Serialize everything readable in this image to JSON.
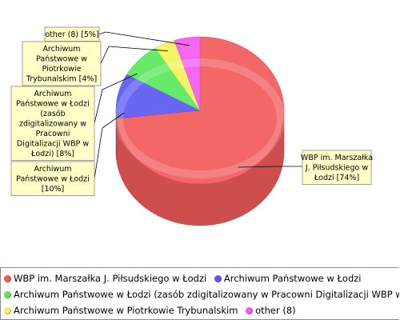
{
  "chart_data": {
    "type": "pie",
    "style": "3d",
    "slices": [
      {
        "name": "WBP im. Marszałka J. Piłsudskiego w Łodzi",
        "percent": 74,
        "label": "WBP im. Marszałka J. Piłsudskiego w Łodzi [74%]",
        "color": "#f25a5a"
      },
      {
        "name": "Archiwum Państwowe w Łodzi",
        "percent": 10,
        "label": "Archiwum Państwowe w Łodzi [10%]",
        "color": "#5a5af2"
      },
      {
        "name": "Archiwum Państwowe w Łodzi (zasób zdigitalizowany w Pracowni Digitalizacji WBP w Łodzi)",
        "percent": 8,
        "label": "Archiwum Państwowe w Łodzi (zasób zdigitalizowany w Pracowni Digitalizacji WBP w Łodzi) [8%]",
        "color": "#5ae85a"
      },
      {
        "name": "Archiwum Państwowe w Piotrkowie Trybunalskim",
        "percent": 4,
        "label": "Archiwum Państwowe w Piotrkowie Trybunalskim [4%]",
        "color": "#f2f25a"
      },
      {
        "name": "other (8)",
        "percent": 5,
        "label": "other (8) [5%]",
        "color": "#f25af2"
      }
    ],
    "legend_position": "bottom"
  },
  "legend": {
    "rows": [
      [
        0,
        1
      ],
      [
        2
      ],
      [
        3,
        4
      ]
    ]
  }
}
